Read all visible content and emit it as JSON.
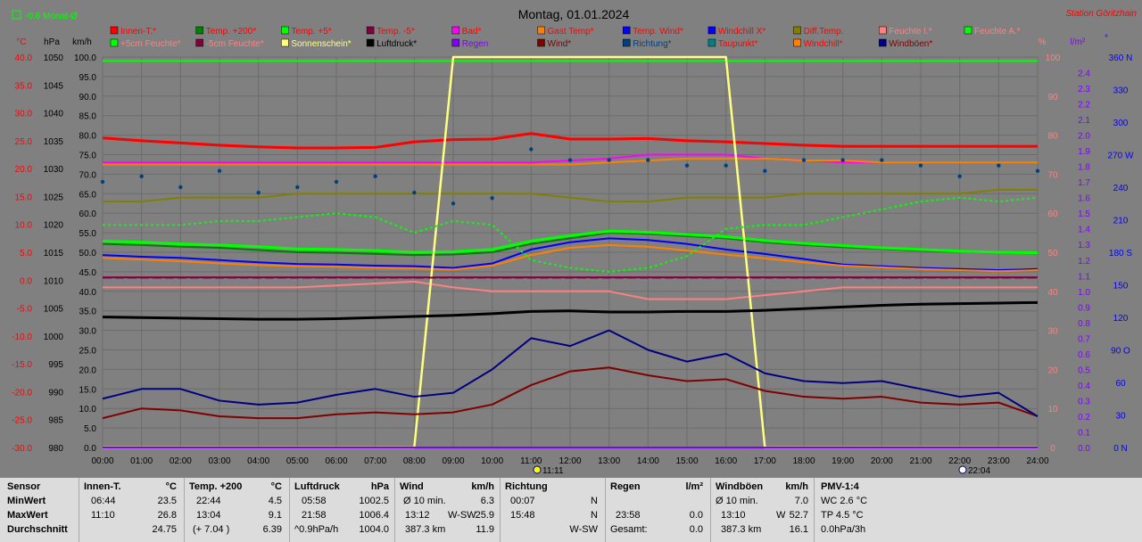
{
  "header": {
    "title": "Montag, 01.01.2024",
    "station": "Station Göritzhain",
    "monat": "-0.6 Monat-Ø",
    "monat_color": "#00ff00"
  },
  "legend": [
    {
      "label": "Innen-T.*",
      "color": "#ff0000",
      "text_color": "#ff0000"
    },
    {
      "label": "Temp. +200*",
      "color": "#008000",
      "text_color": "#ff0000"
    },
    {
      "label": "Temp. +5*",
      "color": "#00ff00",
      "text_color": "#ff0000"
    },
    {
      "label": "Temp. -5*",
      "color": "#800040",
      "text_color": "#ff0000"
    },
    {
      "label": "Bad*",
      "color": "#ff00ff",
      "text_color": "#ff0000"
    },
    {
      "label": "Gast Temp*",
      "color": "#ff8000",
      "text_color": "#ff0000"
    },
    {
      "label": "Temp. Wind*",
      "color": "#0000ff",
      "text_color": "#ff0000"
    },
    {
      "label": "Windchill X*",
      "color": "#0000ff",
      "text_color": "#ff0000"
    },
    {
      "label": "Diff.Temp.",
      "color": "#808000",
      "text_color": "#ff0000"
    },
    {
      "label": "Feuchte I.*",
      "color": "#ff8080",
      "text_color": "#ff8080"
    },
    {
      "label": "Feuchte A.*",
      "color": "#00ff00",
      "text_color": "#ff8080"
    },
    {
      "label": "+5cm Feuchte*",
      "color": "#00ff00",
      "text_color": "#ff8080"
    },
    {
      "label": "-5cm Feuchte*",
      "color": "#800040",
      "text_color": "#ff8080"
    },
    {
      "label": "Sonnenschein*",
      "color": "#ffff80",
      "text_color": "#ffff80"
    },
    {
      "label": "Luftdruck*",
      "color": "#000000",
      "text_color": "#000000"
    },
    {
      "label": "Regen",
      "color": "#8000ff",
      "text_color": "#8000ff"
    },
    {
      "label": "Wind*",
      "color": "#800000",
      "text_color": "#800000"
    },
    {
      "label": "Richtung*",
      "color": "#004080",
      "text_color": "#004080"
    },
    {
      "label": "Taupunkt*",
      "color": "#008080",
      "text_color": "#ff0000"
    },
    {
      "label": "Windchill*",
      "color": "#ff8000",
      "text_color": "#ff0000"
    },
    {
      "label": "Windböen*",
      "color": "#000080",
      "text_color": "#800000"
    }
  ],
  "axes": {
    "celsius_label": "°C",
    "hpa_label": "hPa",
    "kmh_label": "km/h",
    "percent_label": "%",
    "rain_label": "l/m²",
    "dir_label": "°",
    "celsius_ticks": [
      "40.0",
      "35.0",
      "30.0",
      "25.0",
      "20.0",
      "15.0",
      "10.0",
      "5.0",
      "0.0",
      "-5.0",
      "-10.0",
      "-15.0",
      "-20.0",
      "-25.0",
      "-30.0"
    ],
    "hpa_ticks": [
      "1050",
      "1045",
      "1040",
      "1035",
      "1030",
      "1025",
      "1020",
      "1015",
      "1010",
      "1005",
      "1000",
      "995",
      "990",
      "985",
      "980"
    ],
    "kmh_ticks": [
      "100.0",
      "95.0",
      "90.0",
      "85.0",
      "80.0",
      "75.0",
      "70.0",
      "65.0",
      "60.0",
      "55.0",
      "50.0",
      "45.0",
      "40.0",
      "35.0",
      "30.0",
      "25.0",
      "20.0",
      "15.0",
      "10.0",
      "5.0",
      "0.0"
    ],
    "percent_ticks": [
      "100",
      "90",
      "80",
      "70",
      "60",
      "50",
      "40",
      "30",
      "20",
      "10",
      "0"
    ],
    "rain_ticks": [
      "2.4",
      "2.3",
      "2.2",
      "2.1",
      "2.0",
      "1.9",
      "1.8",
      "1.7",
      "1.6",
      "1.5",
      "1.4",
      "1.3",
      "1.2",
      "1.1",
      "1.0",
      "0.9",
      "0.8",
      "0.7",
      "0.6",
      "0.5",
      "0.4",
      "0.3",
      "0.2",
      "0.1",
      "0.0"
    ],
    "dir_ticks": [
      "360 N",
      "330",
      "300",
      "270 W",
      "240",
      "210",
      "180 S",
      "150",
      "120",
      "90 O",
      "60",
      "30",
      "0 N"
    ],
    "time_ticks": [
      "00:00",
      "01:00",
      "02:00",
      "03:00",
      "04:00",
      "05:00",
      "06:00",
      "07:00",
      "08:00",
      "09:00",
      "10:00",
      "11:00",
      "12:00",
      "13:00",
      "14:00",
      "15:00",
      "16:00",
      "17:00",
      "18:00",
      "19:00",
      "20:00",
      "21:00",
      "22:00",
      "23:00",
      "24:00"
    ],
    "sun_marker": "11:11",
    "moon_marker": "22:04"
  },
  "chart_data": {
    "type": "line",
    "xlabel": "",
    "x_unit": "hours",
    "x": [
      0,
      1,
      2,
      3,
      4,
      5,
      6,
      7,
      8,
      9,
      10,
      11,
      12,
      13,
      14,
      15,
      16,
      17,
      18,
      19,
      20,
      21,
      22,
      23,
      24
    ],
    "grid": true,
    "xlim": [
      0,
      24
    ],
    "ylim_celsius": [
      -30,
      40
    ],
    "ylim_hpa": [
      980,
      1050
    ],
    "ylim_kmh": [
      0,
      100
    ],
    "ylim_percent": [
      0,
      100
    ],
    "ylim_rain": [
      0,
      2.5
    ],
    "ylim_dir": [
      0,
      360
    ],
    "series": [
      {
        "name": "Innen-T.*",
        "axis": "celsius",
        "color": "#ff0000",
        "values": [
          25.5,
          25.0,
          24.6,
          24.2,
          23.9,
          23.7,
          23.7,
          23.8,
          24.8,
          25.2,
          25.3,
          26.3,
          25.3,
          25.3,
          25.4,
          25.0,
          24.8,
          24.5,
          24.2,
          24.0,
          24.0,
          24.0,
          24.0,
          24.0,
          24.0
        ]
      },
      {
        "name": "Temp. +200*",
        "axis": "celsius",
        "color": "#008000",
        "values": [
          6.5,
          6.3,
          6.0,
          5.8,
          5.4,
          5.0,
          4.9,
          4.7,
          4.5,
          4.6,
          5.0,
          6.5,
          7.5,
          8.5,
          8.3,
          7.9,
          7.5,
          6.8,
          6.3,
          5.9,
          5.6,
          5.3,
          5.1,
          4.9,
          4.8
        ]
      },
      {
        "name": "Temp. +5*",
        "axis": "celsius",
        "color": "#00ff00",
        "values": [
          7.0,
          6.8,
          6.5,
          6.3,
          6.0,
          5.6,
          5.5,
          5.3,
          5.0,
          5.1,
          5.5,
          7.0,
          8.0,
          8.8,
          8.6,
          8.2,
          7.8,
          7.1,
          6.6,
          6.2,
          5.8,
          5.5,
          5.2,
          5.0,
          4.9
        ]
      },
      {
        "name": "Temp. -5*",
        "axis": "celsius",
        "color": "#800040",
        "values": [
          0.5,
          0.5,
          0.5,
          0.5,
          0.5,
          0.5,
          0.5,
          0.5,
          0.5,
          0.5,
          0.5,
          0.5,
          0.5,
          0.5,
          0.5,
          0.5,
          0.5,
          0.5,
          0.5,
          0.5,
          0.5,
          0.5,
          0.5,
          0.5,
          0.5
        ]
      },
      {
        "name": "Temp. Wind*",
        "axis": "celsius",
        "color": "#0000ff",
        "values": [
          4.5,
          4.2,
          4.0,
          3.6,
          3.2,
          2.9,
          2.8,
          2.6,
          2.5,
          2.2,
          3.0,
          5.5,
          6.8,
          7.5,
          7.2,
          6.5,
          5.5,
          4.7,
          3.8,
          2.8,
          2.5,
          2.2,
          2.0,
          1.8,
          2.0
        ]
      },
      {
        "name": "Windchill*",
        "axis": "celsius",
        "color": "#ff8000",
        "values": [
          4.0,
          3.7,
          3.4,
          3.0,
          2.7,
          2.5,
          2.4,
          2.2,
          2.1,
          1.9,
          2.6,
          4.5,
          5.8,
          6.3,
          6.0,
          5.3,
          4.6,
          3.9,
          3.2,
          2.6,
          2.3,
          2.0,
          1.8,
          1.6,
          1.8
        ]
      },
      {
        "name": "Bad*",
        "axis": "percent",
        "color": "#ff00ff",
        "values": [
          73,
          73,
          73,
          73,
          73,
          73,
          73,
          73,
          73,
          73,
          73,
          73,
          73.5,
          74,
          75,
          75,
          75,
          74,
          73.5,
          73,
          73,
          73,
          73,
          73,
          73
        ]
      },
      {
        "name": "Gast Temp*",
        "axis": "percent",
        "color": "#ff8000",
        "values": [
          72.5,
          72.5,
          72.5,
          72.5,
          72.5,
          72.5,
          72.5,
          72.5,
          72.5,
          72.5,
          72.5,
          72.5,
          72.5,
          73,
          73.5,
          74,
          74,
          74,
          73.5,
          73.5,
          73,
          73,
          73,
          73,
          73
        ]
      },
      {
        "name": "Diff.Temp.",
        "axis": "percent",
        "color": "#808000",
        "values": [
          63,
          63,
          64,
          64,
          64,
          65,
          65,
          65,
          65,
          65,
          65,
          65,
          64,
          63,
          63,
          64,
          64,
          64,
          65,
          65,
          65,
          65,
          65,
          66,
          66
        ]
      },
      {
        "name": "Feuchte I.*",
        "axis": "percent",
        "color": "#ff8080",
        "values": [
          41,
          41,
          41,
          41,
          41,
          41,
          41.5,
          42,
          42.5,
          41,
          40,
          40,
          40,
          40,
          38,
          38,
          38,
          39,
          40,
          41,
          41,
          41,
          41,
          41,
          41
        ]
      },
      {
        "name": "Feuchte A.*",
        "axis": "percent",
        "color": "#00ff00",
        "values": [
          99,
          99,
          99,
          99,
          99,
          99,
          99,
          99,
          99,
          99,
          99,
          99,
          99,
          99,
          99,
          99,
          99,
          99,
          99,
          99,
          99,
          99,
          99,
          99,
          99
        ]
      },
      {
        "name": "Sonnenschein*",
        "axis": "percent",
        "color": "#ffff80",
        "values": [
          0,
          0,
          0,
          0,
          0,
          0,
          0,
          0,
          0,
          100,
          100,
          100,
          100,
          100,
          100,
          100,
          100,
          0,
          0,
          0,
          0,
          0,
          0,
          0,
          0
        ]
      },
      {
        "name": "Luftdruck*",
        "axis": "hpa",
        "color": "#000000",
        "values": [
          1003.4,
          1003.3,
          1003.2,
          1003.1,
          1003.0,
          1003.0,
          1003.1,
          1003.3,
          1003.5,
          1003.7,
          1004.0,
          1004.4,
          1004.5,
          1004.3,
          1004.3,
          1004.4,
          1004.4,
          1004.6,
          1004.9,
          1005.2,
          1005.5,
          1005.7,
          1005.8,
          1005.9,
          1006.0
        ]
      },
      {
        "name": "Regen",
        "axis": "rain",
        "color": "#8000ff",
        "values": [
          0,
          0,
          0,
          0,
          0,
          0,
          0,
          0,
          0,
          0,
          0,
          0,
          0,
          0,
          0,
          0,
          0,
          0,
          0,
          0,
          0,
          0,
          0,
          0,
          0
        ]
      },
      {
        "name": "Wind*",
        "axis": "kmh",
        "color": "#800000",
        "values": [
          7.5,
          10.0,
          9.5,
          8.0,
          7.5,
          7.5,
          8.5,
          9.0,
          8.5,
          9.0,
          11.0,
          16.0,
          19.5,
          20.5,
          18.5,
          17.0,
          17.5,
          14.5,
          13.0,
          12.5,
          13.0,
          11.5,
          11.0,
          11.5,
          8.0
        ]
      },
      {
        "name": "Windböen*",
        "axis": "kmh",
        "color": "#000080",
        "values": [
          12.5,
          15.0,
          15.0,
          12.0,
          11.0,
          11.5,
          13.5,
          15.0,
          13.0,
          14.0,
          20.0,
          28.0,
          26.0,
          30.0,
          25.0,
          22.0,
          24.0,
          19.0,
          17.0,
          16.5,
          17.0,
          15.0,
          13.0,
          14.0,
          8.0
        ]
      },
      {
        "name": "Richtung*",
        "axis": "dir",
        "color": "#004080",
        "values": [
          245,
          250,
          240,
          255,
          235,
          240,
          245,
          250,
          235,
          225,
          230,
          275,
          265,
          265,
          265,
          260,
          260,
          255,
          265,
          265,
          265,
          260,
          250,
          260,
          255
        ]
      },
      {
        "name": "-5cm Feuchte*",
        "axis": "percent",
        "color": "#800040",
        "values": [
          43.5,
          43.5,
          43.5,
          43.5,
          43.5,
          43.5,
          43.5,
          43.5,
          43.5,
          43.5,
          43.5,
          43.5,
          43.5,
          43.5,
          43.5,
          43.5,
          43.5,
          43.5,
          43.5,
          43.5,
          43.5,
          43.5,
          43.5,
          43.5,
          43.5
        ]
      },
      {
        "name": "+5cm Feuchte*",
        "axis": "percent",
        "color": "#00ff00",
        "values": [
          57,
          57,
          57,
          58,
          58,
          59,
          60,
          59,
          55,
          58,
          57,
          48,
          46,
          45,
          46,
          49,
          56,
          57,
          57,
          59,
          61,
          63,
          64,
          63,
          64
        ]
      }
    ]
  },
  "stats": {
    "labels": {
      "title": "Sensor",
      "min": "MinWert",
      "max": "MaxWert",
      "avg": "Durchschnitt"
    },
    "innen": {
      "title": "Innen-T.",
      "unit": "°C",
      "min_time": "06:44",
      "min_val": "23.5",
      "max_time": "11:10",
      "max_val": "26.8",
      "avg": "24.75"
    },
    "temp": {
      "title": "Temp. +200",
      "unit": "°C",
      "min_time": "22:44",
      "min_val": "4.5",
      "max_time": "13:04",
      "max_val": "9.1",
      "avg_note": "(+ 7.04 )",
      "avg": "6.39"
    },
    "druck": {
      "title": "Luftdruck",
      "unit": "hPa",
      "min_time": "05:58",
      "min_val": "1002.5",
      "max_time": "21:58",
      "max_val": "1006.4",
      "avg_note": "^0.9hPa/h",
      "avg": "1004.0"
    },
    "wind": {
      "title": "Wind",
      "unit": "km/h",
      "min_time": "Ø 10 min.",
      "min_val": "6.3",
      "max_time": "13:12",
      "max_dir": "W-SW",
      "max_val": "25.9",
      "avg_note": "387.3 km",
      "avg": "11.9"
    },
    "richtung": {
      "title": "Richtung",
      "min_time": "00:07",
      "min_val": "N",
      "max_time": "15:48",
      "max_val": "N",
      "avg": "W-SW"
    },
    "regen": {
      "title": "Regen",
      "unit": "l/m²",
      "max_time": "23:58",
      "max_val": "0.0",
      "avg_label": "Gesamt:",
      "avg": "0.0"
    },
    "boeen": {
      "title": "Windböen",
      "unit": "km/h",
      "min_time": "Ø 10 min.",
      "min_val": "7.0",
      "max_time": "13:10",
      "max_dir": "W",
      "max_val": "52.7",
      "avg_note": "387.3 km",
      "avg": "16.1"
    },
    "pmv": {
      "title": "PMV-1:4",
      "l1": "WC 2.6 °C",
      "l2": "TP 4.5 °C",
      "l3": "0.0hPa/3h"
    }
  }
}
